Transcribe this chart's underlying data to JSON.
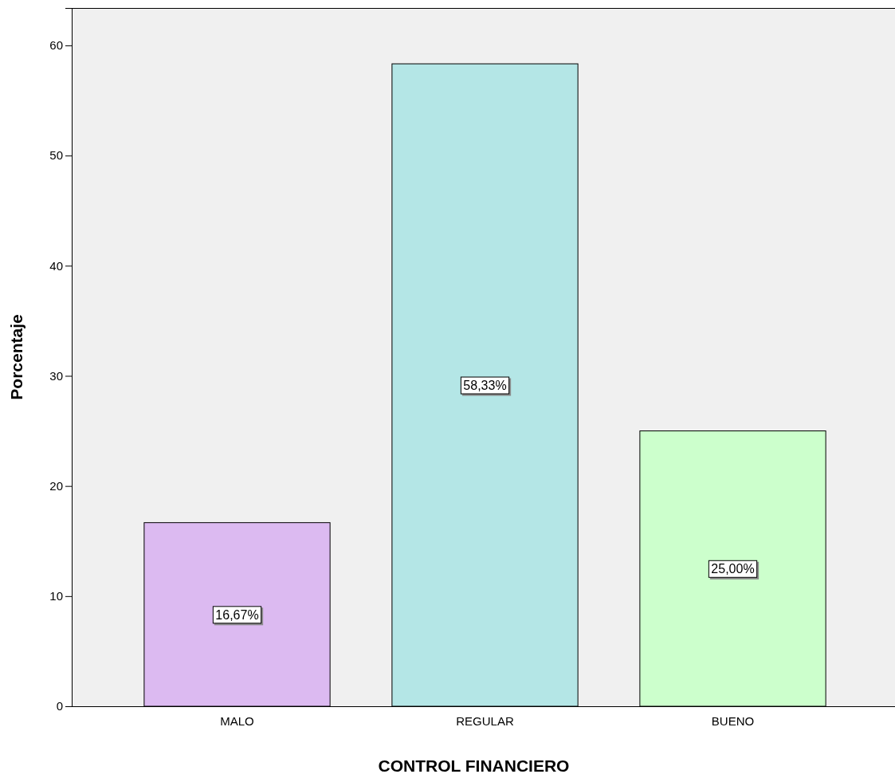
{
  "chart_data": {
    "type": "bar",
    "xlabel": "CONTROL FINANCIERO",
    "ylabel": "Porcentaje",
    "categories": [
      "MALO",
      "REGULAR",
      "BUENO"
    ],
    "values": [
      16.67,
      58.33,
      25.0
    ],
    "colors": [
      "#dcbaf1",
      "#b4e6e6",
      "#ccffcc"
    ],
    "value_labels": [
      "16,67%",
      "58,33%",
      "25,00%"
    ],
    "ylim": [
      0,
      63.4
    ],
    "yticks": [
      0,
      10,
      20,
      30,
      40,
      50,
      60
    ],
    "grid": false
  }
}
